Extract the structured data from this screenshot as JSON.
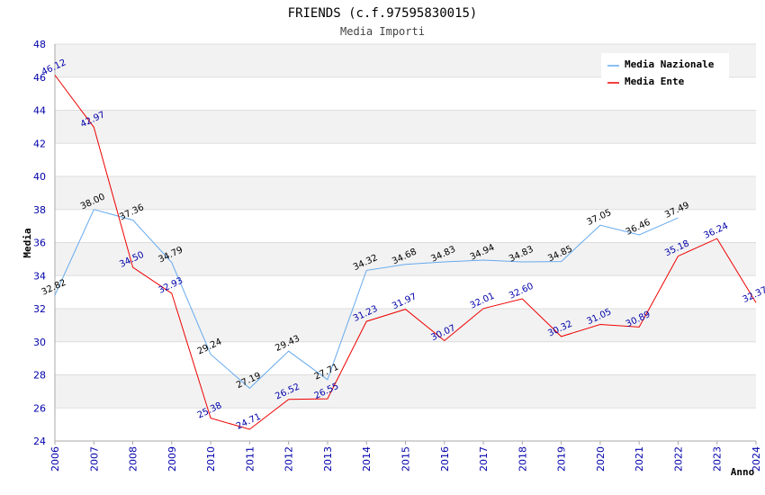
{
  "chart_data": {
    "type": "line",
    "title": "FRIENDS (c.f.97595830015)",
    "subtitle": "Media Importi",
    "xlabel": "Anno",
    "ylabel": "Media",
    "ylim": [
      24,
      48
    ],
    "yticks": [
      24,
      26,
      28,
      30,
      32,
      34,
      36,
      38,
      40,
      42,
      44,
      46,
      48
    ],
    "categories": [
      "2006",
      "2007",
      "2008",
      "2009",
      "2010",
      "2011",
      "2012",
      "2013",
      "2014",
      "2015",
      "2016",
      "2017",
      "2018",
      "2019",
      "2020",
      "2021",
      "2022",
      "2023",
      "2024"
    ],
    "legend_position": "top-right",
    "series": [
      {
        "name": "Media Nazionale",
        "color": "#66aaee",
        "label_color": "#000000",
        "values": [
          32.82,
          38.0,
          37.36,
          34.79,
          29.24,
          27.19,
          29.43,
          27.71,
          34.32,
          34.68,
          34.83,
          34.94,
          34.83,
          34.85,
          37.05,
          36.46,
          37.49,
          null,
          null
        ],
        "labels": [
          "32.82",
          "38.00",
          "37.36",
          "34.79",
          "29.24",
          "27.19",
          "29.43",
          "27.71",
          "34.32",
          "34.68",
          "34.83",
          "34.94",
          "34.83",
          "34.85",
          "37.05",
          "36.46",
          "37.49",
          null,
          null
        ]
      },
      {
        "name": "Media Ente",
        "color": "#ee0000",
        "label_color": "#0000aa",
        "values": [
          46.12,
          42.97,
          34.5,
          32.93,
          25.38,
          24.71,
          26.52,
          26.55,
          31.23,
          31.97,
          30.07,
          32.01,
          32.6,
          30.32,
          31.05,
          30.89,
          35.18,
          36.24,
          32.37
        ],
        "labels": [
          "46.12",
          "42.97",
          "34.50",
          "32.93",
          "25.38",
          "24.71",
          "26.52",
          "26.55",
          "31.23",
          "31.97",
          "30.07",
          "32.01",
          "32.60",
          "30.32",
          "31.05",
          "30.89",
          "35.18",
          "36.24",
          "32.37"
        ]
      }
    ]
  }
}
